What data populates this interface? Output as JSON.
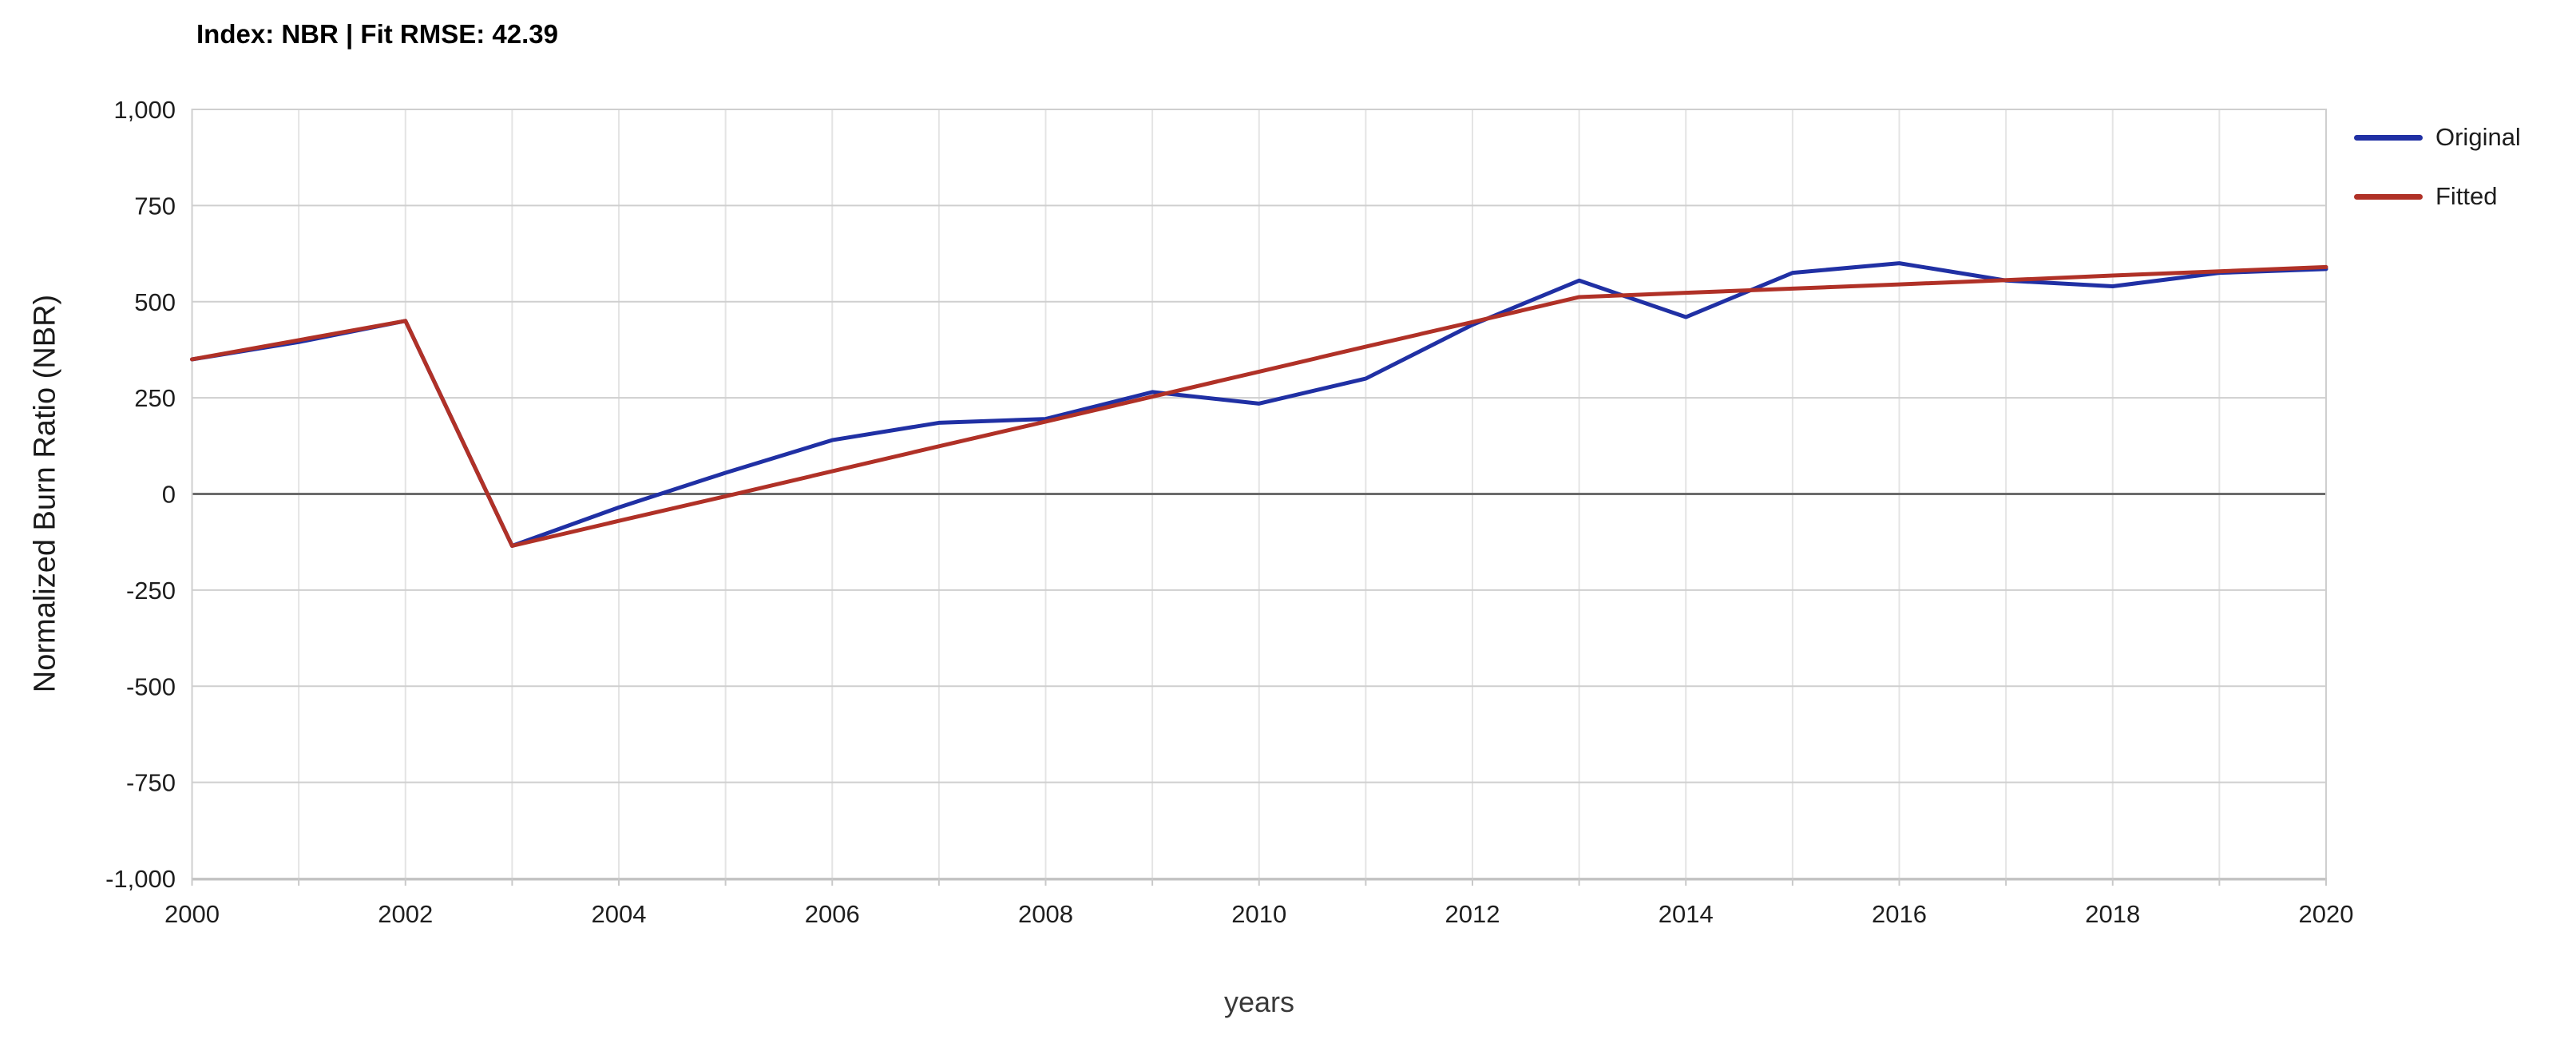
{
  "title": "Index: NBR | Fit RMSE: 42.39",
  "legend": {
    "position": "top-right",
    "items": [
      {
        "label": "Original",
        "color": "#2030a4"
      },
      {
        "label": "Fitted",
        "color": "#b03127"
      }
    ]
  },
  "chart_data": {
    "type": "line",
    "title": "Index: NBR | Fit RMSE: 42.39",
    "xlabel": "years",
    "ylabel": "Normalized Burn Ratio (NBR)",
    "xlim": [
      2000,
      2020
    ],
    "ylim": [
      -1000,
      1000
    ],
    "grid": true,
    "zero_baseline": true,
    "legend_position": "top-right",
    "x": [
      2000,
      2001,
      2002,
      2003,
      2004,
      2005,
      2006,
      2007,
      2008,
      2009,
      2010,
      2011,
      2012,
      2013,
      2014,
      2015,
      2016,
      2017,
      2018,
      2019,
      2020
    ],
    "series": [
      {
        "name": "Original",
        "color": "#2030a4",
        "values": [
          350,
          395,
          450,
          -135,
          -35,
          55,
          140,
          185,
          195,
          265,
          235,
          300,
          440,
          555,
          460,
          575,
          600,
          555,
          540,
          575,
          585
        ]
      },
      {
        "name": "Fitted",
        "color": "#b03127",
        "values": [
          350,
          400,
          450,
          -135,
          -70,
          -6,
          59,
          124,
          188,
          253,
          318,
          383,
          447,
          512,
          523,
          534,
          545,
          556,
          568,
          579,
          590
        ]
      }
    ],
    "y_ticks": {
      "values": [
        1000,
        750,
        500,
        250,
        0,
        -250,
        -500,
        -750,
        -1000
      ],
      "labels": [
        "1,000",
        "750",
        "500",
        "250",
        "0",
        "-250",
        "-500",
        "-750",
        "-1,000"
      ]
    },
    "x_ticks": {
      "values": [
        2000,
        2002,
        2004,
        2006,
        2008,
        2010,
        2012,
        2014,
        2016,
        2018,
        2020
      ],
      "labels": [
        "2000",
        "2002",
        "2004",
        "2006",
        "2008",
        "2010",
        "2012",
        "2014",
        "2016",
        "2018",
        "2020"
      ]
    },
    "colors": {
      "grid_horizontal": "#cfcfcf",
      "grid_vertical": "#e4e4e4",
      "zero_line": "#6b6b6b",
      "border": "#cfcfcf",
      "bottom_axis": "#c2c2c2",
      "tick_text": "#1e1e1e"
    }
  }
}
